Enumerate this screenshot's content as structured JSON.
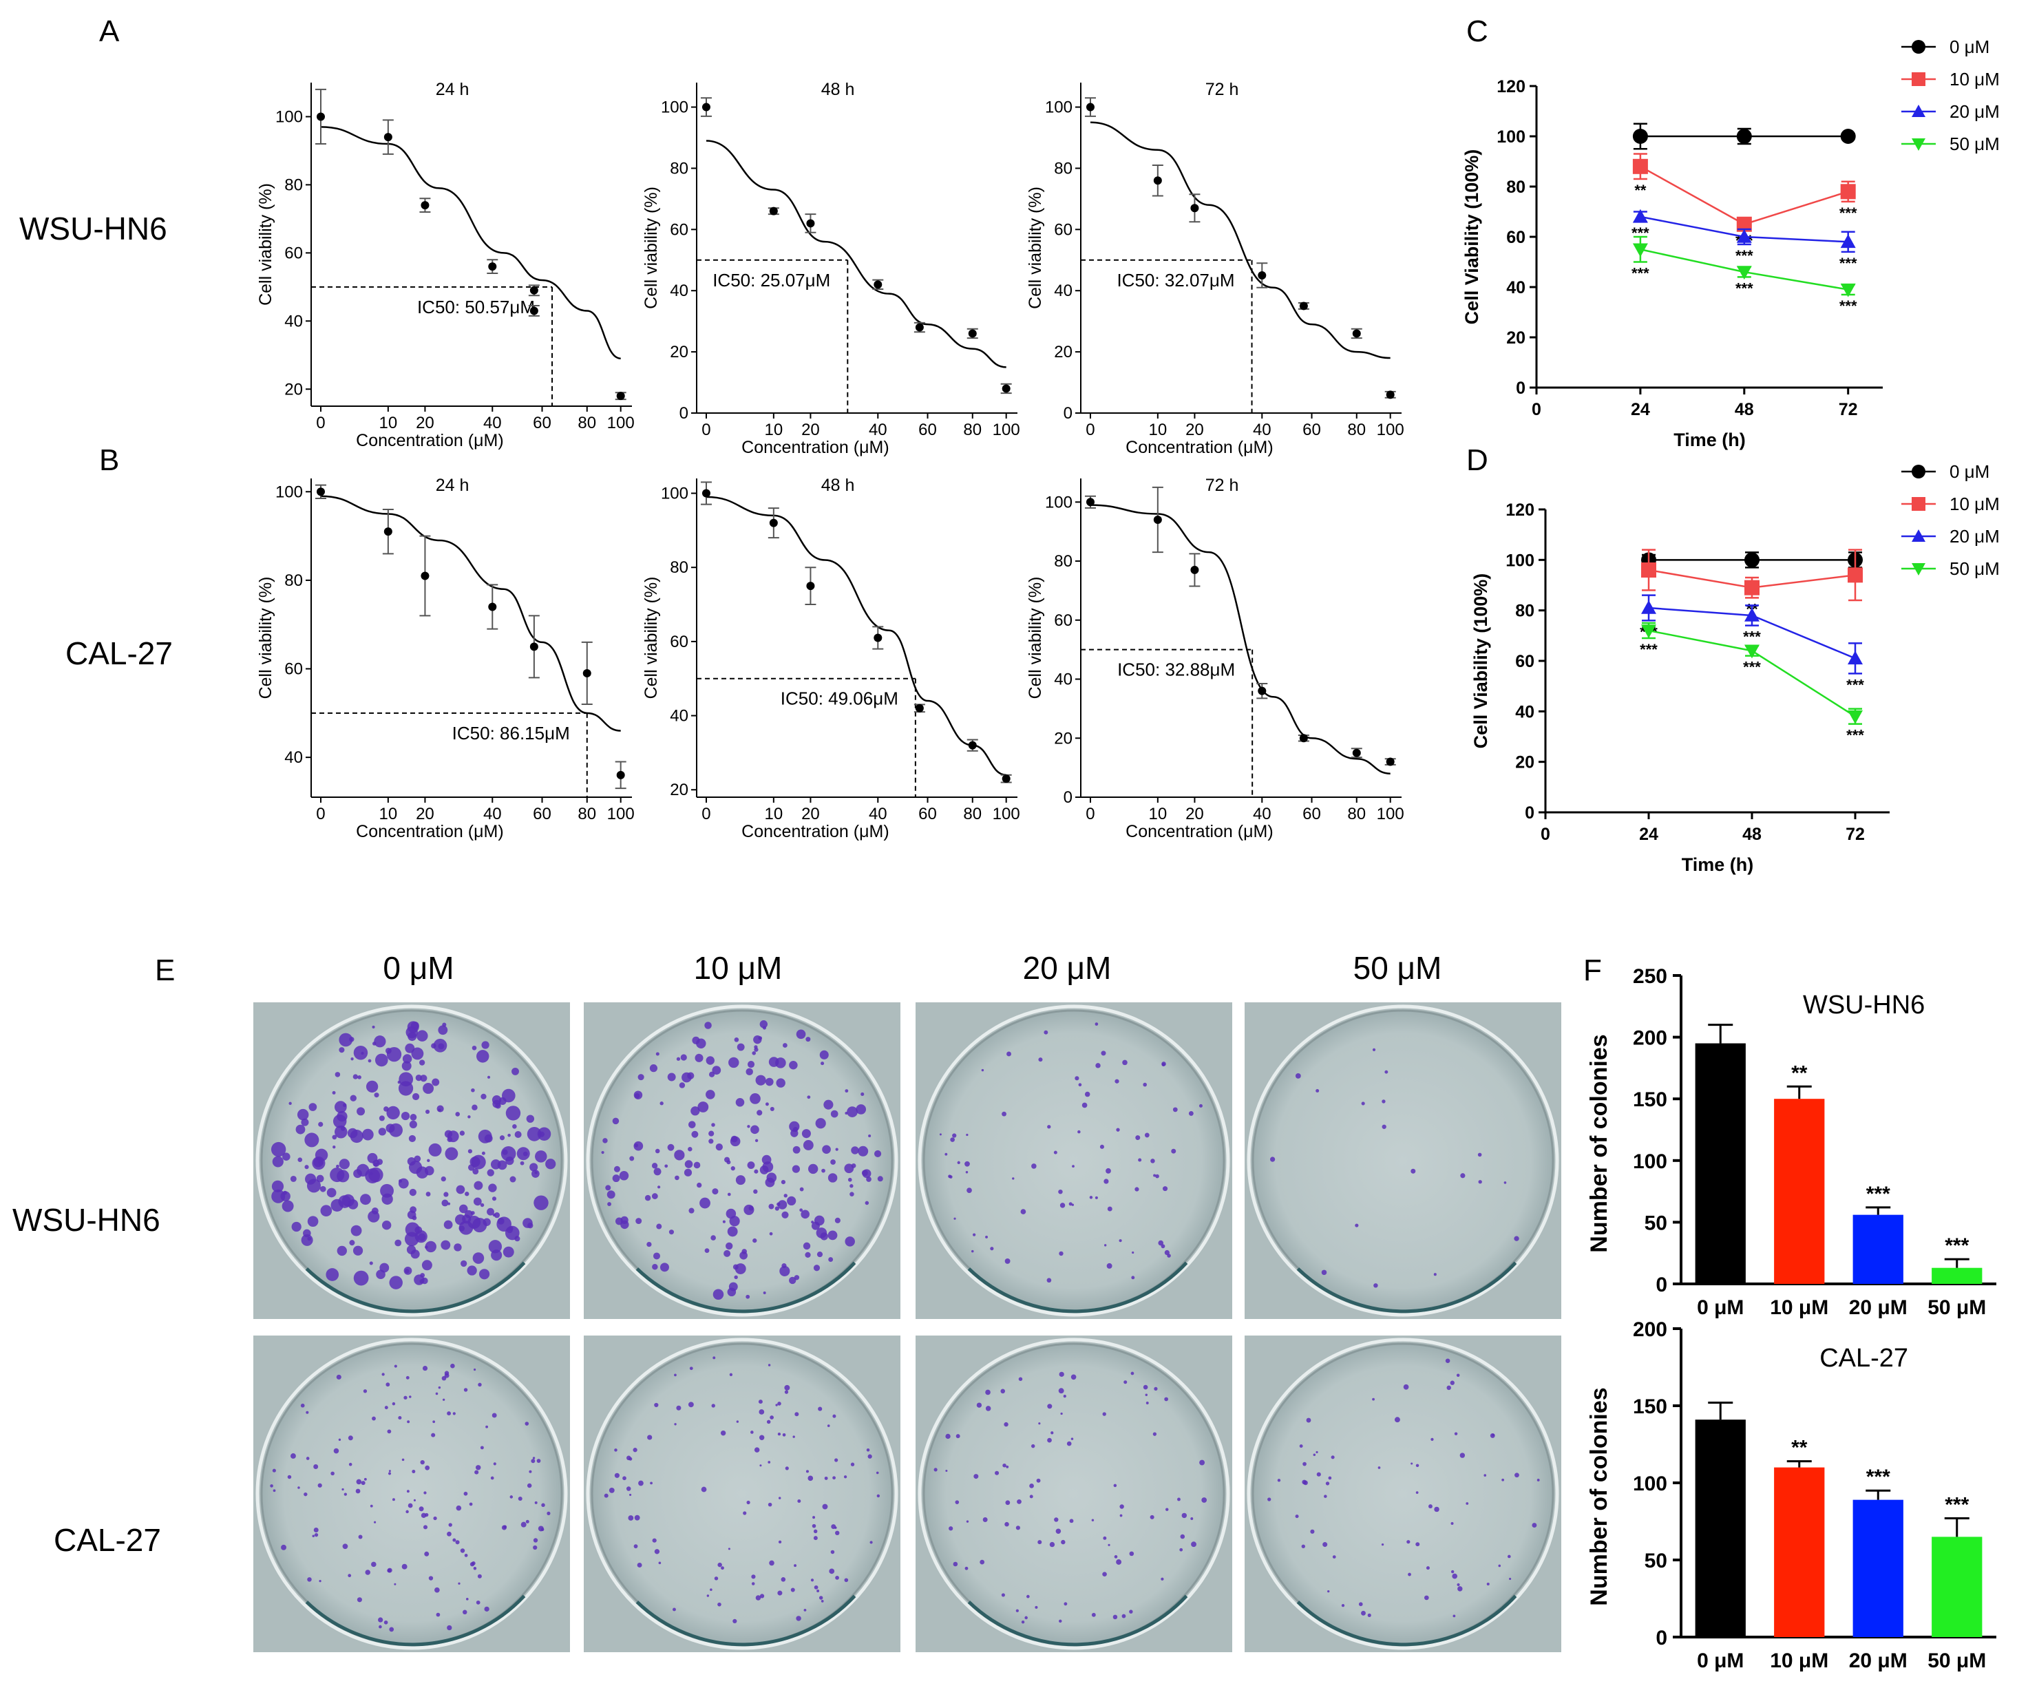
{
  "panel_letters": [
    "A",
    "B",
    "C",
    "D",
    "E",
    "F"
  ],
  "row_labels": {
    "A": "WSU-HN6",
    "B": "CAL-27",
    "E_top": "WSU-HN6",
    "E_bottom": "CAL-27"
  },
  "legend": [
    {
      "label": "0 μM",
      "color": "#000000",
      "marker": "circle"
    },
    {
      "label": "10 μM",
      "color": "#f04848",
      "marker": "square"
    },
    {
      "label": "20 μM",
      "color": "#2323e6",
      "marker": "triangle-up"
    },
    {
      "label": "50 μM",
      "color": "#22dd22",
      "marker": "triangle-down"
    }
  ],
  "colony_image": {
    "doses": [
      "0 μM",
      "10 μM",
      "20 μM",
      "50 μM"
    ],
    "rows": [
      "WSU-HN6",
      "CAL-27"
    ],
    "stain_color": "#5a2fb8",
    "background": "#aebcbd",
    "relative_density": {
      "WSU-HN6": [
        1.0,
        0.77,
        0.29,
        0.07
      ],
      "CAL-27": [
        1.0,
        0.78,
        0.63,
        0.46
      ]
    }
  },
  "chart_data": [
    {
      "id": "A-24h",
      "type": "scatter",
      "title": "24 h",
      "xlabel": "Concentration (μM)",
      "ylabel": "Cell viability (%)",
      "x_ticks": [
        "0",
        "10",
        "20",
        "40",
        "60",
        "80",
        "100"
      ],
      "y_ticks": [
        20,
        40,
        60,
        80,
        100
      ],
      "ylim": [
        15,
        110
      ],
      "points": [
        {
          "x": "0",
          "y": 100,
          "err": 8
        },
        {
          "x": "10",
          "y": 94,
          "err": 5
        },
        {
          "x": "20",
          "y": 74,
          "err": 2
        },
        {
          "x": "40",
          "y": 56,
          "err": 2
        },
        {
          "x": "50",
          "y": 49,
          "err": 1.5
        },
        {
          "x": "60",
          "y": 43,
          "err": 1.5
        },
        {
          "x": "100",
          "y": 18,
          "err": 1
        }
      ],
      "curve": [
        97,
        92,
        79,
        60,
        52,
        43,
        29
      ],
      "ic50_label": "IC50: 50.57μM",
      "ic50_y": 50
    },
    {
      "id": "A-48h",
      "type": "scatter",
      "title": "48 h",
      "xlabel": "Concentration (μM)",
      "ylabel": "Cell viability (%)",
      "x_ticks": [
        "0",
        "10",
        "20",
        "40",
        "60",
        "80",
        "100"
      ],
      "y_ticks": [
        0,
        20,
        40,
        60,
        80,
        100
      ],
      "ylim": [
        0,
        108
      ],
      "points": [
        {
          "x": "0",
          "y": 100,
          "err": 3
        },
        {
          "x": "10",
          "y": 66,
          "err": 1
        },
        {
          "x": "20",
          "y": 62,
          "err": 3
        },
        {
          "x": "40",
          "y": 42,
          "err": 1.5
        },
        {
          "x": "60",
          "y": 28,
          "err": 1.5
        },
        {
          "x": "80",
          "y": 26,
          "err": 1.5
        },
        {
          "x": "100",
          "y": 8,
          "err": 1.5
        }
      ],
      "curve": [
        89,
        73,
        56,
        39,
        29,
        21,
        15
      ],
      "ic50_label": "IC50: 25.07μM",
      "ic50_y": 50
    },
    {
      "id": "A-72h",
      "type": "scatter",
      "title": "72 h",
      "xlabel": "Concentration (μM)",
      "ylabel": "Cell viability (%)",
      "x_ticks": [
        "0",
        "10",
        "20",
        "40",
        "60",
        "80",
        "100"
      ],
      "y_ticks": [
        0,
        20,
        40,
        60,
        80,
        100
      ],
      "ylim": [
        0,
        108
      ],
      "points": [
        {
          "x": "0",
          "y": 100,
          "err": 3
        },
        {
          "x": "10",
          "y": 76,
          "err": 5
        },
        {
          "x": "20",
          "y": 67,
          "err": 4.5
        },
        {
          "x": "40",
          "y": 45,
          "err": 4
        },
        {
          "x": "60",
          "y": 35,
          "err": 1
        },
        {
          "x": "80",
          "y": 26,
          "err": 1.5
        },
        {
          "x": "100",
          "y": 6,
          "err": 1
        }
      ],
      "curve": [
        95,
        86,
        68,
        41,
        29,
        20,
        18
      ],
      "ic50_label": "IC50: 32.07μM",
      "ic50_y": 50
    },
    {
      "id": "B-24h",
      "type": "scatter",
      "title": "24 h",
      "xlabel": "Concentration (μM)",
      "ylabel": "Cell viability (%)",
      "x_ticks": [
        "0",
        "10",
        "20",
        "40",
        "60",
        "80",
        "100"
      ],
      "y_ticks": [
        40,
        60,
        80,
        100
      ],
      "ylim": [
        31,
        103
      ],
      "points": [
        {
          "x": "0",
          "y": 100,
          "err": 1.5
        },
        {
          "x": "10",
          "y": 91,
          "err": 5
        },
        {
          "x": "20",
          "y": 81,
          "err": 9
        },
        {
          "x": "40",
          "y": 74,
          "err": 5
        },
        {
          "x": "60",
          "y": 65,
          "err": 7
        },
        {
          "x": "80",
          "y": 59,
          "err": 7
        },
        {
          "x": "100",
          "y": 36,
          "err": 3
        }
      ],
      "curve": [
        99,
        95,
        89,
        78,
        66,
        50,
        46
      ],
      "ic50_label": "IC50: 86.15μM",
      "ic50_y": 50
    },
    {
      "id": "B-48h",
      "type": "scatter",
      "title": "48 h",
      "xlabel": "Concentration (μM)",
      "ylabel": "Cell viability (%)",
      "x_ticks": [
        "0",
        "10",
        "20",
        "40",
        "60",
        "80",
        "100"
      ],
      "y_ticks": [
        20,
        40,
        60,
        80,
        100
      ],
      "ylim": [
        18,
        104
      ],
      "points": [
        {
          "x": "0",
          "y": 100,
          "err": 3
        },
        {
          "x": "10",
          "y": 92,
          "err": 4
        },
        {
          "x": "20",
          "y": 75,
          "err": 5
        },
        {
          "x": "40",
          "y": 61,
          "err": 3
        },
        {
          "x": "60",
          "y": 42,
          "err": 1
        },
        {
          "x": "80",
          "y": 32,
          "err": 1.5
        },
        {
          "x": "100",
          "y": 23,
          "err": 1
        }
      ],
      "curve": [
        99,
        94,
        82,
        63,
        44,
        32,
        24
      ],
      "ic50_label": "IC50: 49.06μM",
      "ic50_y": 50
    },
    {
      "id": "B-72h",
      "type": "scatter",
      "title": "72 h",
      "xlabel": "Concentration (μM)",
      "ylabel": "Cell viability (%)",
      "x_ticks": [
        "0",
        "10",
        "20",
        "40",
        "60",
        "80",
        "100"
      ],
      "y_ticks": [
        0,
        20,
        40,
        60,
        80,
        100
      ],
      "ylim": [
        0,
        108
      ],
      "points": [
        {
          "x": "0",
          "y": 100,
          "err": 2
        },
        {
          "x": "10",
          "y": 94,
          "err": 11
        },
        {
          "x": "20",
          "y": 77,
          "err": 5.5
        },
        {
          "x": "40",
          "y": 36,
          "err": 2.5
        },
        {
          "x": "60",
          "y": 20,
          "err": 1
        },
        {
          "x": "80",
          "y": 15,
          "err": 1.5
        },
        {
          "x": "100",
          "y": 12,
          "err": 1
        }
      ],
      "curve": [
        99,
        96,
        83,
        34,
        20,
        13,
        8
      ],
      "ic50_label": "IC50: 32.88μM",
      "ic50_y": 50
    },
    {
      "id": "C",
      "type": "line",
      "xlabel": "Time (h)",
      "ylabel": "Cell Viability (100%)",
      "x_ticks": [
        0,
        24,
        48,
        72
      ],
      "y_ticks": [
        0,
        20,
        40,
        60,
        80,
        100,
        120
      ],
      "xlim": [
        0,
        80
      ],
      "ylim": [
        0,
        120
      ],
      "series": [
        {
          "name": "0 μM",
          "x": [
            24,
            48,
            72
          ],
          "y": [
            100,
            100,
            100
          ],
          "err": [
            5,
            3,
            1
          ]
        },
        {
          "name": "10 μM",
          "x": [
            24,
            48,
            72
          ],
          "y": [
            88,
            65,
            78
          ],
          "err": [
            5,
            2,
            4
          ],
          "stars": [
            "**",
            "***",
            "***"
          ]
        },
        {
          "name": "20 μM",
          "x": [
            24,
            48,
            72
          ],
          "y": [
            68,
            60,
            58
          ],
          "err": [
            2,
            3,
            4
          ],
          "stars": [
            "***",
            "***",
            "***"
          ]
        },
        {
          "name": "50 μM",
          "x": [
            24,
            48,
            72
          ],
          "y": [
            55,
            46,
            39
          ],
          "err": [
            5,
            2,
            2
          ],
          "stars": [
            "***",
            "***",
            "***"
          ]
        }
      ]
    },
    {
      "id": "D",
      "type": "line",
      "xlabel": "Time (h)",
      "ylabel": "Cell Viability (100%)",
      "x_ticks": [
        0,
        24,
        48,
        72
      ],
      "y_ticks": [
        0,
        20,
        40,
        60,
        80,
        100,
        120
      ],
      "xlim": [
        0,
        80
      ],
      "ylim": [
        0,
        120
      ],
      "series": [
        {
          "name": "0 μM",
          "x": [
            24,
            48,
            72
          ],
          "y": [
            100,
            100,
            100
          ],
          "err": [
            2,
            3,
            3
          ]
        },
        {
          "name": "10 μM",
          "x": [
            24,
            48,
            72
          ],
          "y": [
            96,
            89,
            94
          ],
          "err": [
            8,
            4,
            10
          ],
          "stars": [
            "",
            "**",
            ""
          ]
        },
        {
          "name": "20 μM",
          "x": [
            24,
            48,
            72
          ],
          "y": [
            81,
            78,
            61
          ],
          "err": [
            5,
            4,
            6
          ],
          "stars": [
            "***",
            "***",
            "***"
          ]
        },
        {
          "name": "50 μM",
          "x": [
            24,
            48,
            72
          ],
          "y": [
            72,
            64,
            38
          ],
          "err": [
            3,
            2,
            3
          ],
          "stars": [
            "***",
            "***",
            "***"
          ]
        }
      ]
    },
    {
      "id": "F-WSU-HN6",
      "type": "bar",
      "title": "WSU-HN6",
      "ylabel": "Number of colonies",
      "categories": [
        "0 μM",
        "10 μM",
        "20 μM",
        "50 μM"
      ],
      "values": [
        195,
        150,
        56,
        13
      ],
      "errors": [
        15,
        10,
        6,
        7
      ],
      "stars": [
        "",
        "**",
        "***",
        "***"
      ],
      "colors": [
        "#000000",
        "#ff2200",
        "#0022ff",
        "#22ee22"
      ],
      "y_ticks": [
        0,
        50,
        100,
        150,
        200,
        250
      ],
      "ylim": [
        0,
        250
      ]
    },
    {
      "id": "F-CAL-27",
      "type": "bar",
      "title": "CAL-27",
      "ylabel": "Number of colonies",
      "categories": [
        "0 μM",
        "10 μM",
        "20 μM",
        "50 μM"
      ],
      "values": [
        141,
        110,
        89,
        65
      ],
      "errors": [
        11,
        4,
        6,
        12
      ],
      "stars": [
        "",
        "**",
        "***",
        "***"
      ],
      "colors": [
        "#000000",
        "#ff2200",
        "#0022ff",
        "#22ee22"
      ],
      "y_ticks": [
        0,
        50,
        100,
        150,
        200
      ],
      "ylim": [
        0,
        200
      ]
    }
  ]
}
